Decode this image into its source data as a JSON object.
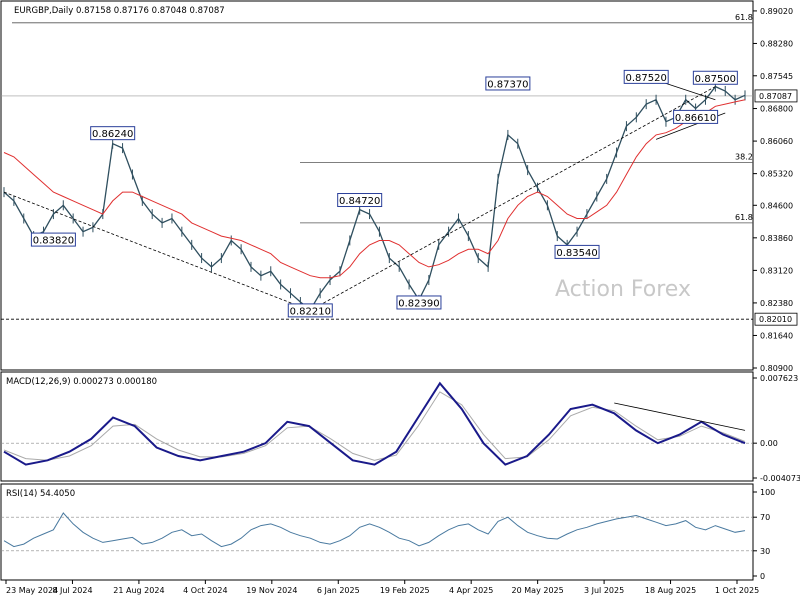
{
  "chart_data": {
    "type": "line",
    "symbol_header": "EURGBP,Daily  0.87158 0.87176 0.87048 0.87087",
    "watermark": "Action Forex",
    "x_dates": [
      "23 May 2024",
      "8 Jul 2024",
      "21 Aug 2024",
      "4 Oct 2024",
      "19 Nov 2024",
      "6 Jan 2025",
      "19 Feb 2025",
      "4 Apr 2025",
      "20 May 2025",
      "3 Jul 2025",
      "18 Aug 2025",
      "1 Oct 2025"
    ],
    "price_panel": {
      "ylim": [
        0.809,
        0.892
      ],
      "y_ticks": [
        "0.89020",
        "0.88280",
        "0.87545",
        "0.86800",
        "0.86060",
        "0.85320",
        "0.84600",
        "0.83860",
        "0.83120",
        "0.82380",
        "0.81640",
        "0.80900"
      ],
      "last_price": "0.87087",
      "line_label": "0.82010",
      "close_series": [
        0.849,
        0.847,
        0.843,
        0.839,
        0.84,
        0.844,
        0.846,
        0.843,
        0.84,
        0.841,
        0.844,
        0.86,
        0.859,
        0.853,
        0.847,
        0.844,
        0.842,
        0.843,
        0.84,
        0.837,
        0.834,
        0.832,
        0.834,
        0.838,
        0.836,
        0.832,
        0.83,
        0.831,
        0.828,
        0.826,
        0.824,
        0.8222,
        0.826,
        0.829,
        0.831,
        0.838,
        0.845,
        0.844,
        0.84,
        0.834,
        0.832,
        0.828,
        0.8245,
        0.829,
        0.837,
        0.84,
        0.843,
        0.839,
        0.834,
        0.832,
        0.852,
        0.862,
        0.86,
        0.854,
        0.85,
        0.846,
        0.839,
        0.837,
        0.84,
        0.844,
        0.848,
        0.852,
        0.858,
        0.864,
        0.866,
        0.869,
        0.87,
        0.865,
        0.866,
        0.87,
        0.868,
        0.87,
        0.873,
        0.872,
        0.87,
        0.871
      ],
      "ma_series": [
        0.858,
        0.857,
        0.855,
        0.853,
        0.851,
        0.849,
        0.848,
        0.847,
        0.846,
        0.845,
        0.844,
        0.847,
        0.849,
        0.849,
        0.848,
        0.847,
        0.846,
        0.845,
        0.844,
        0.842,
        0.841,
        0.84,
        0.839,
        0.8385,
        0.838,
        0.837,
        0.836,
        0.835,
        0.833,
        0.832,
        0.831,
        0.83,
        0.8295,
        0.8295,
        0.83,
        0.832,
        0.835,
        0.837,
        0.838,
        0.838,
        0.837,
        0.835,
        0.833,
        0.832,
        0.8325,
        0.8335,
        0.835,
        0.836,
        0.836,
        0.835,
        0.838,
        0.843,
        0.846,
        0.848,
        0.849,
        0.848,
        0.846,
        0.844,
        0.843,
        0.843,
        0.8445,
        0.846,
        0.849,
        0.853,
        0.857,
        0.86,
        0.862,
        0.8625,
        0.8635,
        0.865,
        0.866,
        0.867,
        0.8685,
        0.869,
        0.8695,
        0.87
      ],
      "annotations": [
        {
          "label": "0.86240",
          "x": 11,
          "y": 0.8624
        },
        {
          "label": "0.83820",
          "x": 5,
          "y": 0.8382
        },
        {
          "label": "0.84720",
          "x": 36,
          "y": 0.8472
        },
        {
          "label": "0.82210",
          "x": 31,
          "y": 0.8221
        },
        {
          "label": "0.82390",
          "x": 42,
          "y": 0.8239
        },
        {
          "label": "0.87370",
          "x": 51,
          "y": 0.8737
        },
        {
          "label": "0.83540",
          "x": 58,
          "y": 0.8354
        },
        {
          "label": "0.87520",
          "x": 65,
          "y": 0.8752
        },
        {
          "label": "0.87500",
          "x": 72,
          "y": 0.875
        },
        {
          "label": "0.86610",
          "x": 70,
          "y": 0.8661
        }
      ],
      "fib_levels": [
        {
          "label": "61.8",
          "y": 0.8875
        },
        {
          "label": "38.2",
          "y": 0.8557
        },
        {
          "label": "61.8",
          "y": 0.842
        }
      ],
      "trendlines": [
        {
          "from": [
            0,
            0.849
          ],
          "to": [
            31,
            0.8221
          ]
        },
        {
          "from": [
            31,
            0.8221
          ],
          "to": [
            72,
            0.873
          ]
        },
        {
          "from": [
            65,
            0.8752
          ],
          "to": [
            72,
            0.87
          ]
        },
        {
          "from": [
            66,
            0.861
          ],
          "to": [
            73,
            0.867
          ]
        }
      ]
    },
    "macd_panel": {
      "label": "MACD(12,26,9) 0.000273 0.000180",
      "ylim": [
        -0.004073,
        0.007623
      ],
      "y_ticks": [
        "0.007623",
        "0.00",
        "-0.004073"
      ],
      "macd_series": [
        -0.001,
        -0.0025,
        -0.002,
        -0.001,
        0.0005,
        0.003,
        0.002,
        -0.0005,
        -0.0015,
        -0.002,
        -0.0015,
        -0.001,
        0.0,
        0.0025,
        0.002,
        0.0,
        -0.002,
        -0.0025,
        -0.001,
        0.003,
        0.007,
        0.004,
        0.0,
        -0.0025,
        -0.0015,
        0.001,
        0.004,
        0.0045,
        0.0035,
        0.0015,
        0.0,
        0.001,
        0.0025,
        0.001,
        0.0
      ],
      "signal_series": [
        -0.0008,
        -0.0018,
        -0.002,
        -0.0015,
        -0.0003,
        0.002,
        0.0022,
        0.0005,
        -0.0008,
        -0.0016,
        -0.0016,
        -0.0012,
        -0.0003,
        0.0018,
        0.002,
        0.0005,
        -0.0012,
        -0.002,
        -0.0014,
        0.002,
        0.006,
        0.0045,
        0.001,
        -0.0018,
        -0.0016,
        0.0004,
        0.0032,
        0.0042,
        0.0038,
        0.002,
        0.0004,
        0.0008,
        0.002,
        0.0012,
        0.0002
      ],
      "divergence_line": {
        "from": [
          28,
          0.0047
        ],
        "to": [
          34,
          0.0015
        ]
      }
    },
    "rsi_panel": {
      "label": "RSI(14) 54.4050",
      "ylim": [
        0,
        100
      ],
      "y_ticks": [
        "100",
        "70",
        "30",
        "0"
      ],
      "levels": [
        70,
        30
      ],
      "rsi_series": [
        42,
        35,
        38,
        45,
        50,
        55,
        75,
        62,
        52,
        45,
        40,
        42,
        44,
        46,
        38,
        40,
        45,
        52,
        55,
        48,
        50,
        42,
        35,
        38,
        45,
        55,
        60,
        62,
        58,
        52,
        48,
        45,
        40,
        38,
        42,
        48,
        58,
        62,
        58,
        52,
        45,
        42,
        36,
        40,
        48,
        55,
        60,
        62,
        55,
        50,
        65,
        70,
        60,
        52,
        48,
        45,
        44,
        50,
        55,
        58,
        62,
        65,
        68,
        70,
        72,
        68,
        64,
        60,
        62,
        66,
        58,
        55,
        60,
        56,
        52,
        54
      ]
    }
  }
}
